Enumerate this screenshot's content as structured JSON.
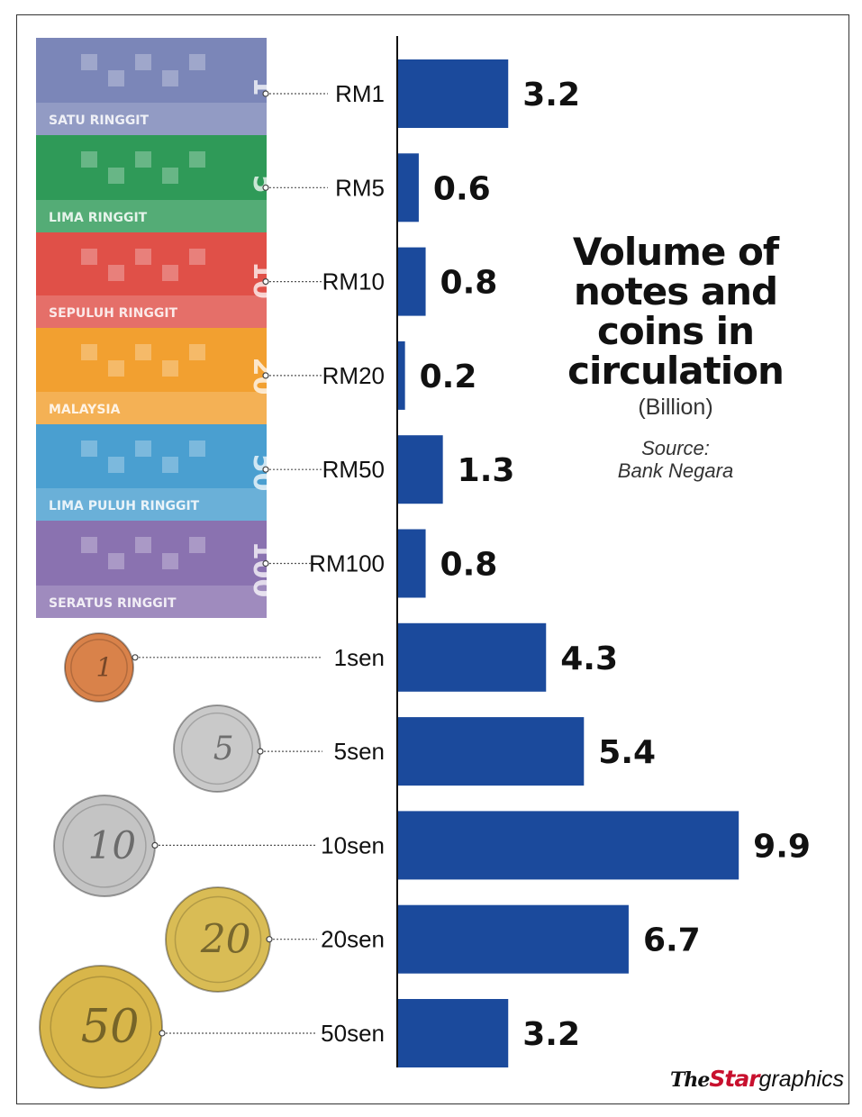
{
  "chart_data": {
    "type": "bar",
    "orientation": "horizontal",
    "title": "Volume of notes and coins in circulation",
    "units": "(Billion)",
    "source_label": "Source:",
    "source_name": "Bank Negara",
    "categories": [
      "RM1",
      "RM5",
      "RM10",
      "RM20",
      "RM50",
      "RM100",
      "1sen",
      "5sen",
      "10sen",
      "20sen",
      "50sen"
    ],
    "values": [
      3.2,
      0.6,
      0.8,
      0.2,
      1.3,
      0.8,
      4.3,
      5.4,
      9.9,
      6.7,
      3.2
    ],
    "value_labels": [
      "3.2",
      "0.6",
      "0.8",
      "0.2",
      "1.3",
      "0.8",
      "4.3",
      "5.4",
      "9.9",
      "6.7",
      "3.2"
    ],
    "xlim": [
      0,
      10
    ],
    "grid": false,
    "bar_color": "#1b4a9c"
  },
  "notes": [
    {
      "denomination": "RM1",
      "text": "SATU RINGGIT",
      "digits": "1",
      "color": "#7b86b8"
    },
    {
      "denomination": "RM5",
      "text": "LIMA RINGGIT",
      "digits": "5",
      "color": "#2f9a58"
    },
    {
      "denomination": "RM10",
      "text": "SEPULUH RINGGIT",
      "digits": "10",
      "color": "#e05048"
    },
    {
      "denomination": "RM20",
      "text": "MALAYSIA",
      "digits": "20",
      "color": "#f2a030"
    },
    {
      "denomination": "RM50",
      "text": "LIMA PULUH RINGGIT",
      "digits": "50",
      "color": "#4a9fd0"
    },
    {
      "denomination": "RM100",
      "text": "SERATUS RINGGIT",
      "digits": "100",
      "color": "#8a72b0"
    }
  ],
  "coins": [
    {
      "denomination": "1sen",
      "digits": "1",
      "color": "#d9824a"
    },
    {
      "denomination": "5sen",
      "digits": "5",
      "color": "#c9c9c9"
    },
    {
      "denomination": "10sen",
      "digits": "10",
      "color": "#c4c4c4"
    },
    {
      "denomination": "20sen",
      "digits": "20",
      "color": "#d9bc55"
    },
    {
      "denomination": "50sen",
      "digits": "50",
      "color": "#d8b64a"
    }
  ],
  "credit": {
    "the": "The",
    "star": "Star",
    "graphics": "graphics"
  }
}
